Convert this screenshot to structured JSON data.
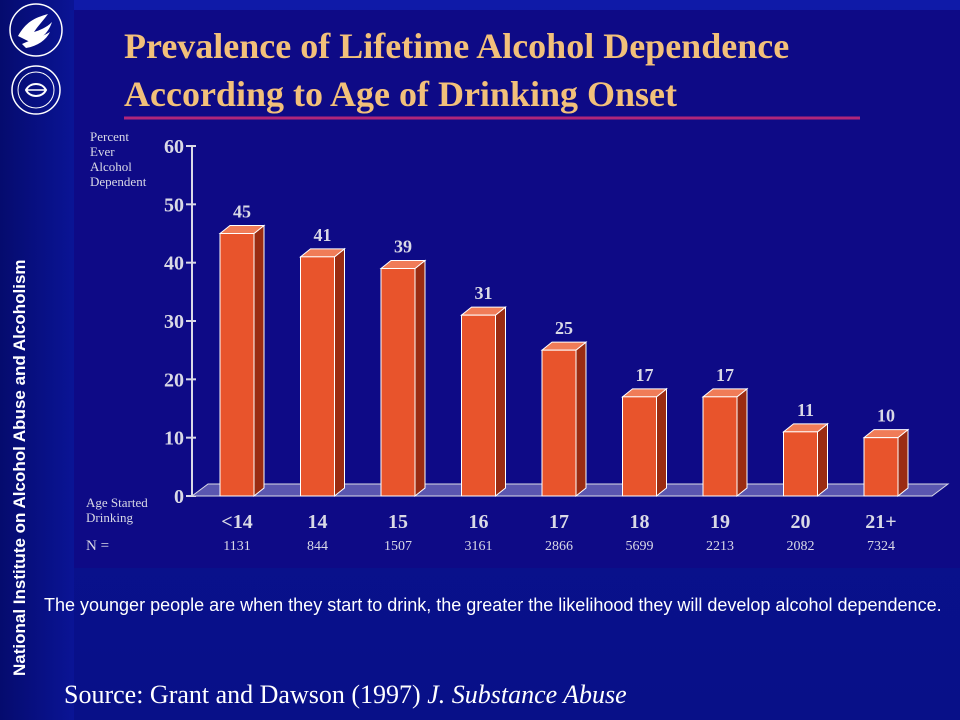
{
  "sidebar": {
    "vertical_text": "National Institute on Alcohol Abuse and Alcoholism",
    "logos": [
      "hhs-eagle-logo",
      "nih-logo"
    ]
  },
  "chart_data": {
    "type": "bar",
    "title_lines": [
      "Prevalence of Lifetime Alcohol Dependence",
      "According to Age of Drinking Onset"
    ],
    "ylabel_lines": [
      "Percent",
      "Ever",
      "Alcohol",
      "Dependent"
    ],
    "xlabel_lines": [
      "Age Started",
      "Drinking"
    ],
    "categories": [
      "<14",
      "14",
      "15",
      "16",
      "17",
      "18",
      "19",
      "20",
      "21+"
    ],
    "values": [
      45,
      41,
      39,
      31,
      25,
      17,
      17,
      11,
      10
    ],
    "n_label": "N =",
    "n_values": [
      "1131",
      "844",
      "1507",
      "3161",
      "2866",
      "5699",
      "2213",
      "2082",
      "7324"
    ],
    "ylim": [
      0,
      60
    ],
    "yticks": [
      0,
      10,
      20,
      30,
      40,
      50,
      60
    ],
    "grid": false,
    "colors": {
      "bar_front": "#e8542c",
      "bar_side": "#9a2c12",
      "bar_top": "#f07c58",
      "bar_outline": "#ffffff",
      "title_text": "#f2c07a",
      "title_underline": "#b0267a",
      "axis_text": "#d9d9e6",
      "floor": "#5a56b0"
    }
  },
  "caption": "The younger people are when they start  to drink, the greater the likelihood they will develop alcohol dependence.",
  "source": {
    "prefix": "Source:  Grant and Dawson (1997) ",
    "journal": "J. Substance Abuse"
  }
}
